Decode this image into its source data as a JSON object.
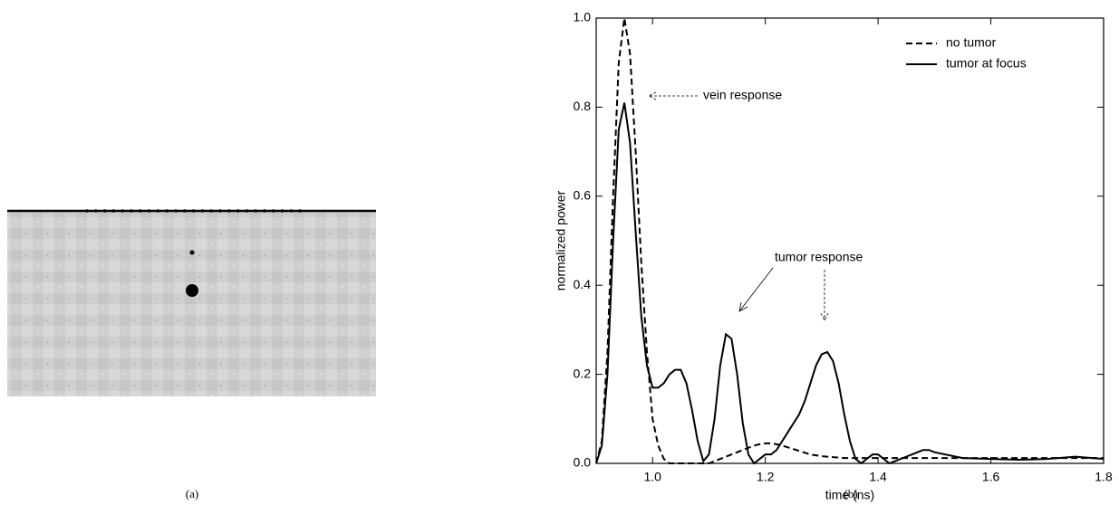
{
  "captions": [
    "(a)",
    "(b)"
  ],
  "chart_data": {
    "type": "line",
    "xlabel": "time (ns)",
    "ylabel": "normalized power",
    "xlim": [
      0.9,
      1.8
    ],
    "ylim": [
      0,
      1
    ],
    "xticks": [
      {
        "value": 1,
        "label": "1.0"
      },
      {
        "value": 1.2,
        "label": "1.2"
      },
      {
        "value": 1.4,
        "label": "1.4"
      },
      {
        "value": 1.6,
        "label": "1.6"
      },
      {
        "value": 1.8,
        "label": "1.8"
      }
    ],
    "yticks": [
      {
        "value": 0,
        "label": "0.0"
      },
      {
        "value": 0.2,
        "label": "0.2"
      },
      {
        "value": 0.4,
        "label": "0.4"
      },
      {
        "value": 0.6,
        "label": "0.6"
      },
      {
        "value": 0.8,
        "label": "0.8"
      },
      {
        "value": 1,
        "label": "1.0"
      }
    ],
    "legend": "upper right",
    "annotations": [
      {
        "text": "vein response"
      },
      {
        "text": "tumor response"
      }
    ],
    "x": [
      0.9,
      0.91,
      0.92,
      0.93,
      0.94,
      0.95,
      0.96,
      0.97,
      0.98,
      0.99,
      1.0,
      1.01,
      1.02,
      1.03,
      1.04,
      1.05,
      1.06,
      1.07,
      1.08,
      1.09,
      1.1,
      1.11,
      1.12,
      1.13,
      1.14,
      1.15,
      1.16,
      1.17,
      1.18,
      1.19,
      1.2,
      1.21,
      1.22,
      1.23,
      1.24,
      1.25,
      1.26,
      1.27,
      1.28,
      1.29,
      1.3,
      1.31,
      1.32,
      1.33,
      1.34,
      1.35,
      1.36,
      1.37,
      1.38,
      1.39,
      1.4,
      1.41,
      1.42,
      1.43,
      1.44,
      1.45,
      1.46,
      1.47,
      1.48,
      1.49,
      1.5,
      1.55,
      1.6,
      1.65,
      1.7,
      1.75,
      1.8
    ],
    "series": [
      {
        "name": "no tumor",
        "color": "#000000",
        "dash": "dashed",
        "values": [
          0,
          0.05,
          0.25,
          0.6,
          0.9,
          1,
          0.92,
          0.7,
          0.45,
          0.25,
          0.1,
          0.04,
          0.01,
          0,
          0,
          0,
          0,
          0,
          0,
          0,
          0,
          0.005,
          0.01,
          0.015,
          0.02,
          0.025,
          0.03,
          0.035,
          0.04,
          0.043,
          0.045,
          0.045,
          0.043,
          0.04,
          0.036,
          0.032,
          0.028,
          0.024,
          0.02,
          0.018,
          0.016,
          0.015,
          0.014,
          0.013,
          0.012,
          0.012,
          0.012,
          0.012,
          0.012,
          0.012,
          0.012,
          0.012,
          0.012,
          0.012,
          0.012,
          0.012,
          0.012,
          0.012,
          0.012,
          0.012,
          0.012,
          0.012,
          0.012,
          0.012,
          0.012,
          0.012,
          0.012
        ]
      },
      {
        "name": "tumor at focus",
        "color": "#000000",
        "dash": "solid",
        "values": [
          0,
          0.04,
          0.2,
          0.5,
          0.75,
          0.81,
          0.72,
          0.52,
          0.33,
          0.22,
          0.17,
          0.17,
          0.18,
          0.2,
          0.21,
          0.21,
          0.18,
          0.12,
          0.05,
          0.005,
          0.02,
          0.1,
          0.22,
          0.29,
          0.28,
          0.2,
          0.09,
          0.02,
          0,
          0.01,
          0.02,
          0.02,
          0.03,
          0.05,
          0.07,
          0.09,
          0.11,
          0.14,
          0.18,
          0.22,
          0.245,
          0.25,
          0.23,
          0.18,
          0.11,
          0.05,
          0.01,
          0,
          0.01,
          0.02,
          0.02,
          0.01,
          0,
          0.005,
          0.01,
          0.015,
          0.02,
          0.025,
          0.03,
          0.03,
          0.025,
          0.012,
          0.01,
          0.008,
          0.01,
          0.015,
          0.01
        ]
      }
    ]
  }
}
